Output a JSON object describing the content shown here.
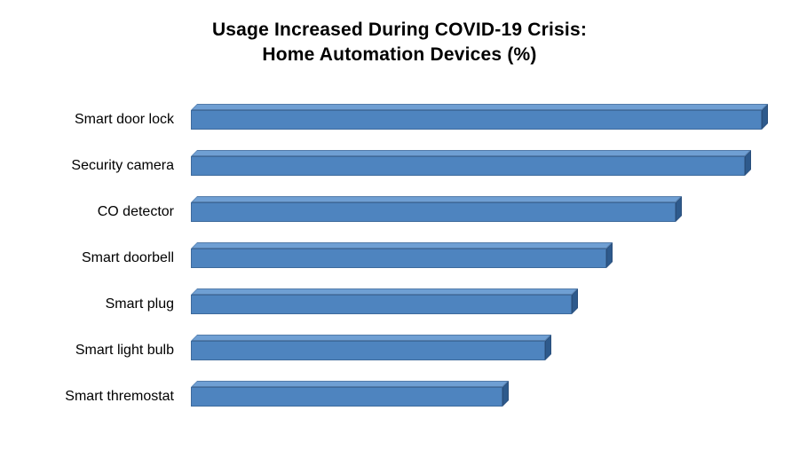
{
  "chart_data": {
    "type": "bar",
    "orientation": "horizontal",
    "style": "3d",
    "title": "Usage Increased During COVID-19 Crisis: Home Automation Devices (%)",
    "title_line1": "Usage Increased During COVID-19 Crisis:",
    "title_line2": "Home Automation Devices (%)",
    "categories": [
      "Smart door lock",
      "Security camera",
      "CO detector",
      "Smart doorbell",
      "Smart plug",
      "Smart light bulb",
      "Smart thremostat"
    ],
    "values": [
      66,
      64,
      56,
      48,
      44,
      41,
      36
    ],
    "xlabel": "",
    "ylabel": "",
    "xlim": [
      0,
      70
    ],
    "grid": false,
    "legend": "none",
    "axis_labels_visible": false,
    "bar_color": "#4e84bf",
    "bar_top_color": "#6f9fd3",
    "bar_end_color": "#2e5a8c",
    "background_color": "#ffffff",
    "title_color": "#000000"
  }
}
